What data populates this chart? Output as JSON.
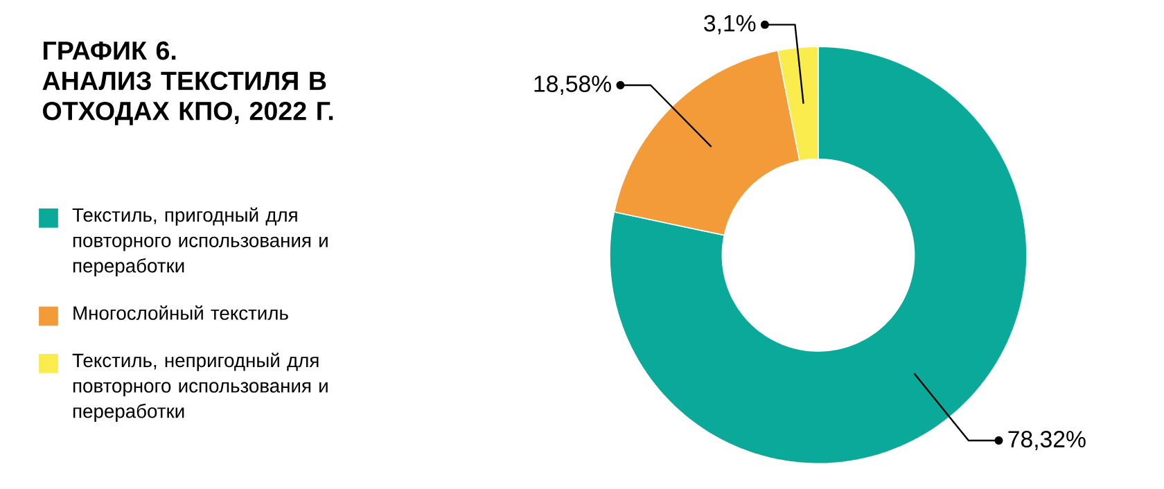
{
  "chart_data": {
    "type": "donut",
    "title": "ГРАФИК 6.",
    "subtitle": "АНАЛИЗ ТЕКСТИЛЯ В ОТХОДАХ КПО, 2022 Г.",
    "categories": [
      "Текстиль, пригодный для повторного использования и переработки",
      "Многослойный текстиль",
      "Текстиль, непригодный для повторного использования и переработки"
    ],
    "values": [
      78.32,
      18.58,
      3.1
    ],
    "value_labels": [
      "78,32%",
      "18,58%",
      "3,1%"
    ],
    "colors": [
      "#0aa99a",
      "#f29b38",
      "#faec4c"
    ],
    "legend": "left"
  }
}
